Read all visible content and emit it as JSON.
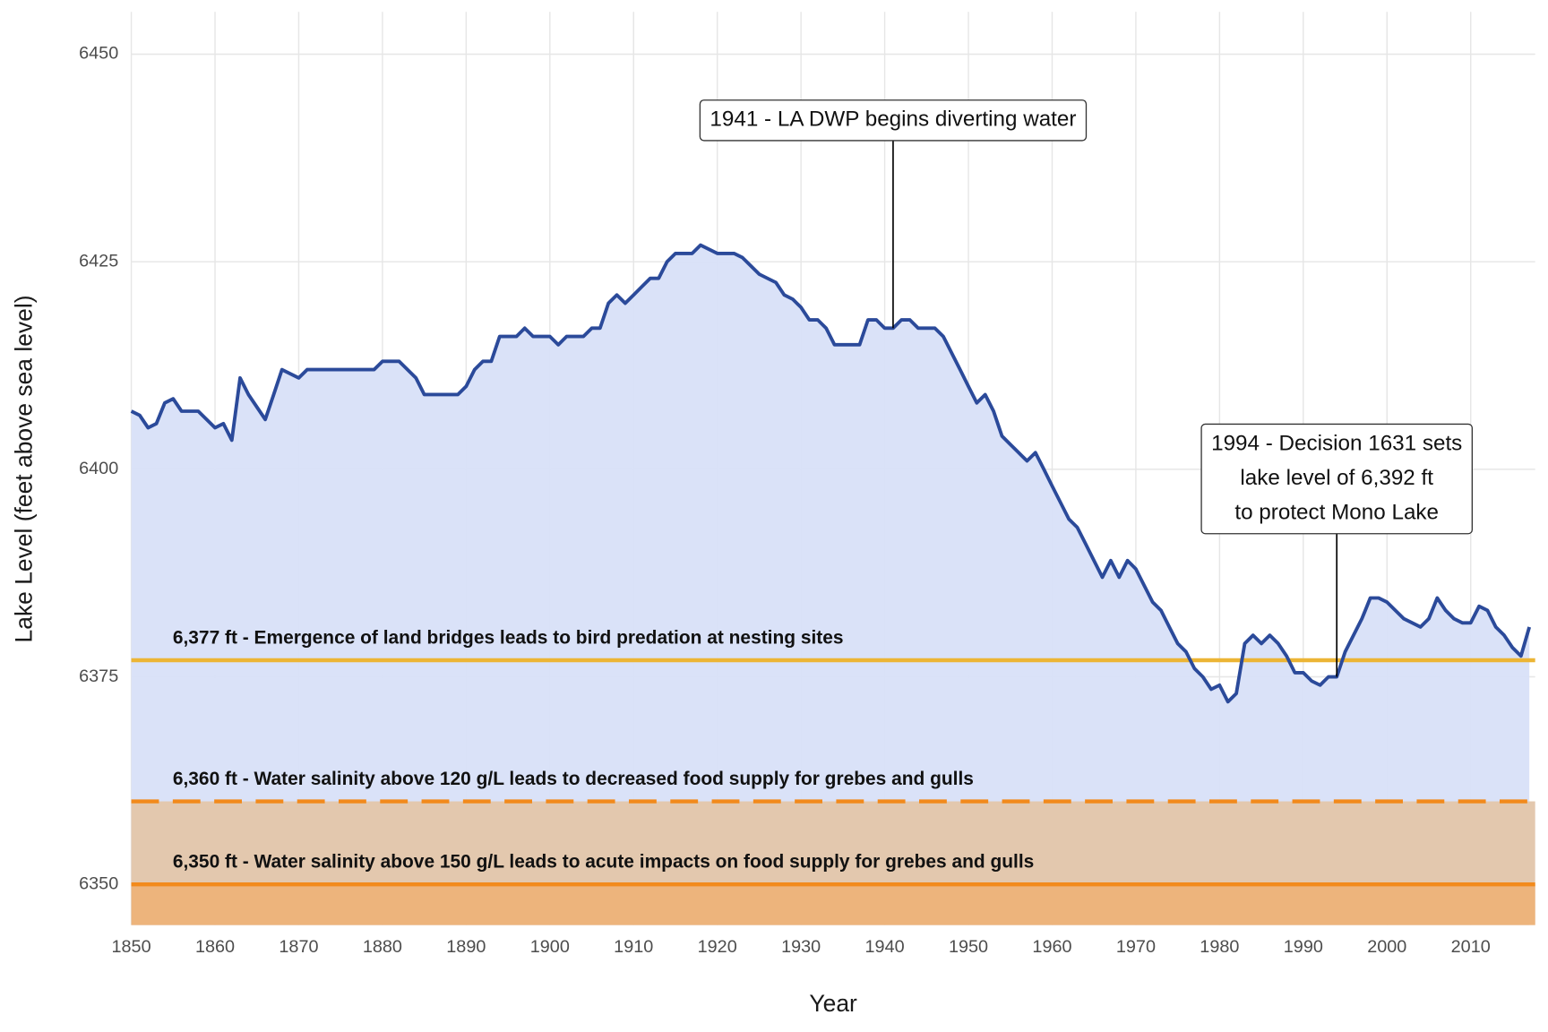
{
  "chart_data": {
    "type": "line",
    "x_label": "Year",
    "y_label": "Lake Level (feet above sea level)",
    "xlim": [
      1850,
      2017.7
    ],
    "ylim": [
      6345.1,
      6455.1
    ],
    "xticks": [
      1850,
      1860,
      1870,
      1880,
      1890,
      1900,
      1910,
      1920,
      1930,
      1940,
      1950,
      1960,
      1970,
      1980,
      1990,
      2000,
      2010
    ],
    "yticks": [
      {
        "value": 6350,
        "label": "6350"
      },
      {
        "value": 6375,
        "label": "6375"
      },
      {
        "value": 6400,
        "label": "6400"
      },
      {
        "value": 6425,
        "label": "6425"
      },
      {
        "value": 6450,
        "label": "6450"
      }
    ],
    "grid": true,
    "color": "#2b4a9a",
    "area_color": "#d8e0f8",
    "x": [
      1850,
      1851,
      1852,
      1853,
      1854,
      1855,
      1856,
      1857,
      1858,
      1859,
      1860,
      1861,
      1862,
      1863,
      1864,
      1865,
      1866,
      1867,
      1868,
      1869,
      1870,
      1871,
      1872,
      1873,
      1874,
      1875,
      1876,
      1877,
      1878,
      1879,
      1880,
      1881,
      1882,
      1883,
      1884,
      1885,
      1886,
      1887,
      1888,
      1889,
      1890,
      1891,
      1892,
      1893,
      1894,
      1895,
      1896,
      1897,
      1898,
      1899,
      1900,
      1901,
      1902,
      1903,
      1904,
      1905,
      1906,
      1907,
      1908,
      1909,
      1910,
      1911,
      1912,
      1913,
      1914,
      1915,
      1916,
      1917,
      1918,
      1919,
      1920,
      1921,
      1922,
      1923,
      1924,
      1925,
      1926,
      1927,
      1928,
      1929,
      1930,
      1931,
      1932,
      1933,
      1934,
      1935,
      1936,
      1937,
      1938,
      1939,
      1940,
      1941,
      1942,
      1943,
      1944,
      1945,
      1946,
      1947,
      1948,
      1949,
      1950,
      1951,
      1952,
      1953,
      1954,
      1955,
      1956,
      1957,
      1958,
      1959,
      1960,
      1961,
      1962,
      1963,
      1964,
      1965,
      1966,
      1967,
      1968,
      1969,
      1970,
      1971,
      1972,
      1973,
      1974,
      1975,
      1976,
      1977,
      1978,
      1979,
      1980,
      1981,
      1982,
      1983,
      1984,
      1985,
      1986,
      1987,
      1988,
      1989,
      1990,
      1991,
      1992,
      1993,
      1994,
      1995,
      1996,
      1997,
      1998,
      1999,
      2000,
      2001,
      2002,
      2003,
      2004,
      2005,
      2006,
      2007,
      2008,
      2009,
      2010,
      2011,
      2012,
      2013,
      2014,
      2015,
      2016,
      2017
    ],
    "values": [
      6407,
      6406.5,
      6405,
      6405.5,
      6408,
      6408.5,
      6407,
      6407,
      6407,
      6406,
      6405,
      6405.5,
      6403.5,
      6411,
      6409,
      6407.5,
      6406,
      6409,
      6412,
      6411.5,
      6411,
      6412,
      6412,
      6412,
      6412,
      6412,
      6412,
      6412,
      6412,
      6412,
      6413,
      6413,
      6413,
      6412,
      6411,
      6409,
      6409,
      6409,
      6409,
      6409,
      6410,
      6412,
      6413,
      6413,
      6416,
      6416,
      6416,
      6417,
      6416,
      6416,
      6416,
      6415,
      6416,
      6416,
      6416,
      6417,
      6417,
      6420,
      6421,
      6420,
      6421,
      6422,
      6423,
      6423,
      6425,
      6426,
      6426,
      6426,
      6427,
      6426.5,
      6426,
      6426,
      6426,
      6425.5,
      6424.5,
      6423.5,
      6423,
      6422.5,
      6421,
      6420.5,
      6419.5,
      6418,
      6418,
      6417,
      6415,
      6415,
      6415,
      6415,
      6418,
      6418,
      6417,
      6417,
      6418,
      6418,
      6417,
      6417,
      6417,
      6416,
      6414,
      6412,
      6410,
      6408,
      6409,
      6407,
      6404,
      6403,
      6402,
      6401,
      6402,
      6400,
      6398,
      6396,
      6394,
      6393,
      6391,
      6389,
      6387,
      6389,
      6387,
      6389,
      6388,
      6386,
      6384,
      6383,
      6381,
      6379,
      6378,
      6376,
      6375,
      6373.5,
      6374,
      6372,
      6373,
      6379,
      6380,
      6379,
      6380,
      6379,
      6377.5,
      6375.5,
      6375.5,
      6374.5,
      6374,
      6375,
      6375,
      6378,
      6380,
      6382,
      6384.5,
      6384.5,
      6384,
      6383,
      6382,
      6381.5,
      6381,
      6382,
      6384.5,
      6383,
      6382,
      6381.5,
      6381.5,
      6383.5,
      6383,
      6381,
      6380,
      6378.5,
      6377.5,
      6381
    ],
    "thresholds": [
      {
        "value": 6377,
        "label": "6,377 ft - Emergence of land bridges leads to bird predation at nesting sites",
        "color": "#ecb535",
        "dashed": false
      },
      {
        "value": 6360,
        "label": "6,360 ft - Water salinity above 120 g/L leads to decreased food supply for grebes and gulls",
        "color": "#f28a1c",
        "dashed": true,
        "fill": "#e3c8ae"
      },
      {
        "value": 6350,
        "label": "6,350 ft - Water salinity above 150 g/L leads to acute impacts on food supply for grebes and gulls",
        "color": "#f28a1c",
        "dashed": false,
        "fill": "#edb47c"
      }
    ],
    "annotations": [
      {
        "x": 1941,
        "y": 6417,
        "lines": [
          "1941 - LA DWP begins diverting water"
        ]
      },
      {
        "x": 1994,
        "y": 6375,
        "lines": [
          "1994 - Decision 1631 sets",
          "lake level of 6,392 ft",
          "to protect Mono Lake"
        ]
      }
    ]
  }
}
